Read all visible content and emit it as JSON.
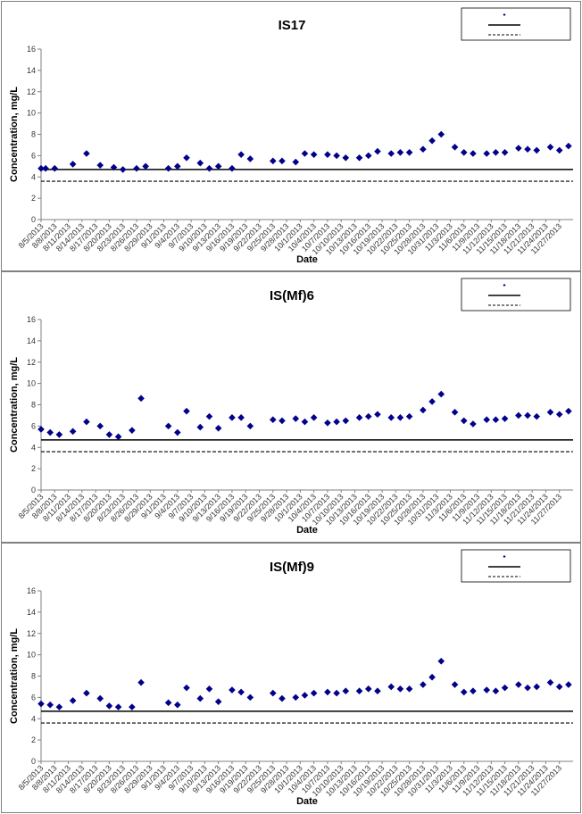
{
  "chart_data": [
    {
      "type": "scatter",
      "title": "IS17",
      "xlabel": "Date",
      "ylabel": "Concentration, mg/L",
      "ylim": [
        0,
        16
      ],
      "yticks": [
        0,
        2,
        4,
        6,
        8,
        10,
        12,
        14,
        16
      ],
      "grid": false,
      "legend_position": "top-right",
      "x_tick_labels": [
        "8/5/2013",
        "8/8/2013",
        "8/11/2013",
        "8/14/2013",
        "8/17/2013",
        "8/20/2013",
        "8/23/2013",
        "8/26/2013",
        "8/29/2013",
        "9/1/2013",
        "9/4/2013",
        "9/7/2013",
        "9/10/2013",
        "9/13/2013",
        "9/16/2013",
        "9/19/2013",
        "9/22/2013",
        "9/25/2013",
        "9/28/2013",
        "10/1/2013",
        "10/4/2013",
        "10/7/2013",
        "10/10/2013",
        "10/13/2013",
        "10/16/2013",
        "10/19/2013",
        "10/22/2013",
        "10/25/2013",
        "10/28/2013",
        "10/31/2013",
        "11/3/2013",
        "11/6/2013",
        "11/9/2013",
        "11/12/2013",
        "11/15/2013",
        "11/18/2013",
        "11/21/2013",
        "11/24/2013",
        "11/27/2013"
      ],
      "series": [
        {
          "marker": "diamond",
          "color": "#00008B",
          "points": [
            [
              "2013-08-05",
              4.8
            ],
            [
              "2013-08-06",
              4.8
            ],
            [
              "2013-08-08",
              4.8
            ],
            [
              "2013-08-12",
              5.2
            ],
            [
              "2013-08-15",
              6.2
            ],
            [
              "2013-08-18",
              5.1
            ],
            [
              "2013-08-21",
              4.9
            ],
            [
              "2013-08-23",
              4.7
            ],
            [
              "2013-08-26",
              4.8
            ],
            [
              "2013-08-28",
              5.0
            ],
            [
              "2013-09-02",
              4.8
            ],
            [
              "2013-09-04",
              5.0
            ],
            [
              "2013-09-06",
              5.8
            ],
            [
              "2013-09-09",
              5.3
            ],
            [
              "2013-09-11",
              4.8
            ],
            [
              "2013-09-13",
              5.0
            ],
            [
              "2013-09-16",
              4.8
            ],
            [
              "2013-09-18",
              6.1
            ],
            [
              "2013-09-20",
              5.7
            ],
            [
              "2013-09-25",
              5.5
            ],
            [
              "2013-09-27",
              5.5
            ],
            [
              "2013-09-30",
              5.4
            ],
            [
              "2013-10-02",
              6.2
            ],
            [
              "2013-10-04",
              6.1
            ],
            [
              "2013-10-07",
              6.1
            ],
            [
              "2013-10-09",
              6.0
            ],
            [
              "2013-10-11",
              5.8
            ],
            [
              "2013-10-14",
              5.8
            ],
            [
              "2013-10-16",
              6.0
            ],
            [
              "2013-10-18",
              6.4
            ],
            [
              "2013-10-21",
              6.2
            ],
            [
              "2013-10-23",
              6.3
            ],
            [
              "2013-10-25",
              6.3
            ],
            [
              "2013-10-28",
              6.6
            ],
            [
              "2013-10-30",
              7.4
            ],
            [
              "2013-11-01",
              8.0
            ],
            [
              "2013-11-04",
              6.8
            ],
            [
              "2013-11-06",
              6.3
            ],
            [
              "2013-11-08",
              6.2
            ],
            [
              "2013-11-11",
              6.2
            ],
            [
              "2013-11-13",
              6.3
            ],
            [
              "2013-11-15",
              6.3
            ],
            [
              "2013-11-18",
              6.7
            ],
            [
              "2013-11-20",
              6.6
            ],
            [
              "2013-11-22",
              6.5
            ],
            [
              "2013-11-25",
              6.8
            ],
            [
              "2013-11-27",
              6.5
            ],
            [
              "2013-11-29",
              6.9
            ]
          ]
        }
      ],
      "reference_lines": [
        {
          "style": "solid",
          "y": 4.7
        },
        {
          "style": "dashed",
          "y": 3.6
        }
      ]
    },
    {
      "type": "scatter",
      "title": "IS(Mf)6",
      "xlabel": "Date",
      "ylabel": "Concentration, mg/L",
      "ylim": [
        0,
        16
      ],
      "yticks": [
        0,
        2,
        4,
        6,
        8,
        10,
        12,
        14,
        16
      ],
      "grid": false,
      "legend_position": "top-right",
      "x_tick_labels": [
        "8/5/2013",
        "8/8/2013",
        "8/11/2013",
        "8/14/2013",
        "8/17/2013",
        "8/20/2013",
        "8/23/2013",
        "8/26/2013",
        "8/29/2013",
        "9/1/2013",
        "9/4/2013",
        "9/7/2013",
        "9/10/2013",
        "9/13/2013",
        "9/16/2013",
        "9/19/2013",
        "9/22/2013",
        "9/25/2013",
        "9/28/2013",
        "10/1/2013",
        "10/4/2013",
        "10/7/2013",
        "10/10/2013",
        "10/13/2013",
        "10/16/2013",
        "10/19/2013",
        "10/22/2013",
        "10/25/2013",
        "10/28/2013",
        "10/31/2013",
        "11/3/2013",
        "11/6/2013",
        "11/9/2013",
        "11/12/2013",
        "11/15/2013",
        "11/18/2013",
        "11/21/2013",
        "11/24/2013",
        "11/27/2013"
      ],
      "series": [
        {
          "marker": "diamond",
          "color": "#00008B",
          "points": [
            [
              "2013-08-05",
              5.7
            ],
            [
              "2013-08-07",
              5.4
            ],
            [
              "2013-08-09",
              5.2
            ],
            [
              "2013-08-12",
              5.5
            ],
            [
              "2013-08-15",
              6.4
            ],
            [
              "2013-08-18",
              6.0
            ],
            [
              "2013-08-20",
              5.2
            ],
            [
              "2013-08-22",
              5.0
            ],
            [
              "2013-08-25",
              5.6
            ],
            [
              "2013-08-27",
              8.6
            ],
            [
              "2013-09-02",
              6.0
            ],
            [
              "2013-09-04",
              5.4
            ],
            [
              "2013-09-06",
              7.4
            ],
            [
              "2013-09-09",
              5.9
            ],
            [
              "2013-09-11",
              6.9
            ],
            [
              "2013-09-13",
              5.8
            ],
            [
              "2013-09-16",
              6.8
            ],
            [
              "2013-09-18",
              6.8
            ],
            [
              "2013-09-20",
              6.0
            ],
            [
              "2013-09-25",
              6.6
            ],
            [
              "2013-09-27",
              6.5
            ],
            [
              "2013-09-30",
              6.7
            ],
            [
              "2013-10-02",
              6.4
            ],
            [
              "2013-10-04",
              6.8
            ],
            [
              "2013-10-07",
              6.3
            ],
            [
              "2013-10-09",
              6.4
            ],
            [
              "2013-10-11",
              6.5
            ],
            [
              "2013-10-14",
              6.8
            ],
            [
              "2013-10-16",
              6.9
            ],
            [
              "2013-10-18",
              7.1
            ],
            [
              "2013-10-21",
              6.8
            ],
            [
              "2013-10-23",
              6.8
            ],
            [
              "2013-10-25",
              6.9
            ],
            [
              "2013-10-28",
              7.5
            ],
            [
              "2013-10-30",
              8.3
            ],
            [
              "2013-11-01",
              9.0
            ],
            [
              "2013-11-04",
              7.3
            ],
            [
              "2013-11-06",
              6.5
            ],
            [
              "2013-11-08",
              6.2
            ],
            [
              "2013-11-11",
              6.6
            ],
            [
              "2013-11-13",
              6.6
            ],
            [
              "2013-11-15",
              6.7
            ],
            [
              "2013-11-18",
              7.0
            ],
            [
              "2013-11-20",
              7.0
            ],
            [
              "2013-11-22",
              6.9
            ],
            [
              "2013-11-25",
              7.3
            ],
            [
              "2013-11-27",
              7.1
            ],
            [
              "2013-11-29",
              7.4
            ]
          ]
        }
      ],
      "reference_lines": [
        {
          "style": "solid",
          "y": 4.7
        },
        {
          "style": "dashed",
          "y": 3.6
        }
      ]
    },
    {
      "type": "scatter",
      "title": "IS(Mf)9",
      "xlabel": "Date",
      "ylabel": "Concentration, mg/L",
      "ylim": [
        0,
        16
      ],
      "yticks": [
        0,
        2,
        4,
        6,
        8,
        10,
        12,
        14,
        16
      ],
      "grid": false,
      "legend_position": "top-right",
      "x_tick_labels": [
        "8/5/2013",
        "8/8/2013",
        "8/11/2013",
        "8/14/2013",
        "8/17/2013",
        "8/20/2013",
        "8/23/2013",
        "8/26/2013",
        "8/29/2013",
        "9/1/2013",
        "9/4/2013",
        "9/7/2013",
        "9/10/2013",
        "9/13/2013",
        "9/16/2013",
        "9/19/2013",
        "9/22/2013",
        "9/25/2013",
        "9/28/2013",
        "10/1/2013",
        "10/4/2013",
        "10/7/2013",
        "10/10/2013",
        "10/13/2013",
        "10/16/2013",
        "10/19/2013",
        "10/22/2013",
        "10/25/2013",
        "10/28/2013",
        "10/31/2013",
        "11/3/2013",
        "11/6/2013",
        "11/9/2013",
        "11/12/2013",
        "11/15/2013",
        "11/18/2013",
        "11/21/2013",
        "11/24/2013",
        "11/27/2013"
      ],
      "series": [
        {
          "marker": "diamond",
          "color": "#00008B",
          "points": [
            [
              "2013-08-05",
              5.4
            ],
            [
              "2013-08-07",
              5.3
            ],
            [
              "2013-08-09",
              5.1
            ],
            [
              "2013-08-12",
              5.7
            ],
            [
              "2013-08-15",
              6.4
            ],
            [
              "2013-08-18",
              5.9
            ],
            [
              "2013-08-20",
              5.2
            ],
            [
              "2013-08-22",
              5.1
            ],
            [
              "2013-08-25",
              5.1
            ],
            [
              "2013-08-27",
              7.4
            ],
            [
              "2013-09-02",
              5.5
            ],
            [
              "2013-09-04",
              5.3
            ],
            [
              "2013-09-06",
              6.9
            ],
            [
              "2013-09-09",
              5.9
            ],
            [
              "2013-09-11",
              6.8
            ],
            [
              "2013-09-13",
              5.6
            ],
            [
              "2013-09-16",
              6.7
            ],
            [
              "2013-09-18",
              6.5
            ],
            [
              "2013-09-20",
              6.0
            ],
            [
              "2013-09-25",
              6.4
            ],
            [
              "2013-09-27",
              5.9
            ],
            [
              "2013-09-30",
              6.0
            ],
            [
              "2013-10-02",
              6.2
            ],
            [
              "2013-10-04",
              6.4
            ],
            [
              "2013-10-07",
              6.5
            ],
            [
              "2013-10-09",
              6.4
            ],
            [
              "2013-10-11",
              6.6
            ],
            [
              "2013-10-14",
              6.6
            ],
            [
              "2013-10-16",
              6.8
            ],
            [
              "2013-10-18",
              6.6
            ],
            [
              "2013-10-21",
              7.0
            ],
            [
              "2013-10-23",
              6.8
            ],
            [
              "2013-10-25",
              6.8
            ],
            [
              "2013-10-28",
              7.2
            ],
            [
              "2013-10-30",
              7.9
            ],
            [
              "2013-11-01",
              9.4
            ],
            [
              "2013-11-04",
              7.2
            ],
            [
              "2013-11-06",
              6.5
            ],
            [
              "2013-11-08",
              6.6
            ],
            [
              "2013-11-11",
              6.7
            ],
            [
              "2013-11-13",
              6.6
            ],
            [
              "2013-11-15",
              6.9
            ],
            [
              "2013-11-18",
              7.2
            ],
            [
              "2013-11-20",
              6.9
            ],
            [
              "2013-11-22",
              7.0
            ],
            [
              "2013-11-25",
              7.4
            ],
            [
              "2013-11-27",
              7.0
            ],
            [
              "2013-11-29",
              7.2
            ]
          ]
        }
      ],
      "reference_lines": [
        {
          "style": "solid",
          "y": 4.7
        },
        {
          "style": "dashed",
          "y": 3.6
        }
      ]
    }
  ]
}
